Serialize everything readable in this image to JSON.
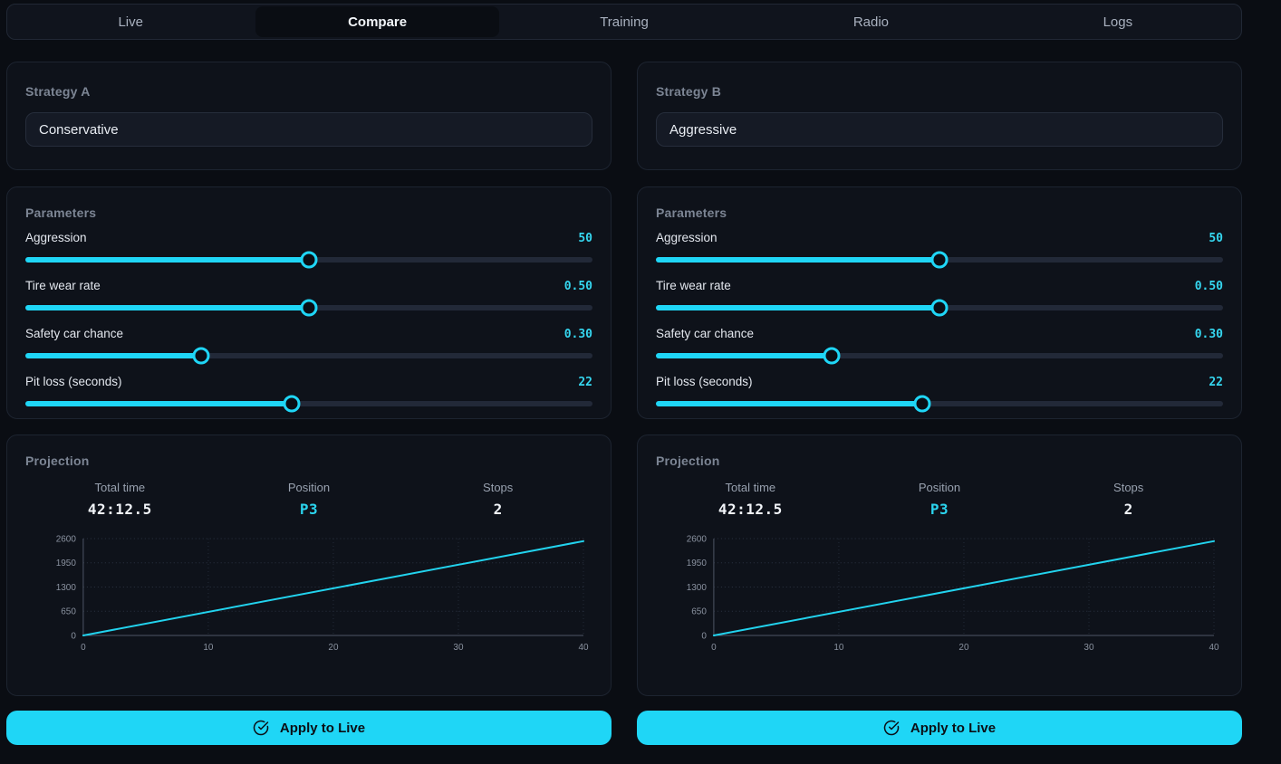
{
  "nav": {
    "tabs": [
      {
        "label": "Live",
        "active": false
      },
      {
        "label": "Compare",
        "active": true
      },
      {
        "label": "Training",
        "active": false
      },
      {
        "label": "Radio",
        "active": false
      },
      {
        "label": "Logs",
        "active": false
      }
    ]
  },
  "colors": {
    "accent": "#1fd6f6",
    "accent_text": "#35d6ef",
    "chart_line": "#22d3ee",
    "card_bg": "#0e121a",
    "page_bg": "#0a0d13"
  },
  "columns": [
    {
      "strategy_title": "Strategy A",
      "strategy_value": "Conservative",
      "parameters_title": "Parameters",
      "parameters": [
        {
          "label": "Aggression",
          "value": "50",
          "percent": 50
        },
        {
          "label": "Tire wear rate",
          "value": "0.50",
          "percent": 50
        },
        {
          "label": "Safety car chance",
          "value": "0.30",
          "percent": 31
        },
        {
          "label": "Pit loss (seconds)",
          "value": "22",
          "percent": 47
        }
      ],
      "projection_title": "Projection",
      "stats": [
        {
          "label": "Total time",
          "value": "42:12.5",
          "accent": false
        },
        {
          "label": "Position",
          "value": "P3",
          "accent": true
        },
        {
          "label": "Stops",
          "value": "2",
          "accent": false
        }
      ],
      "apply_label": "Apply to Live"
    },
    {
      "strategy_title": "Strategy B",
      "strategy_value": "Aggressive",
      "parameters_title": "Parameters",
      "parameters": [
        {
          "label": "Aggression",
          "value": "50",
          "percent": 50
        },
        {
          "label": "Tire wear rate",
          "value": "0.50",
          "percent": 50
        },
        {
          "label": "Safety car chance",
          "value": "0.30",
          "percent": 31
        },
        {
          "label": "Pit loss (seconds)",
          "value": "22",
          "percent": 47
        }
      ],
      "projection_title": "Projection",
      "stats": [
        {
          "label": "Total time",
          "value": "42:12.5",
          "accent": false
        },
        {
          "label": "Position",
          "value": "P3",
          "accent": true
        },
        {
          "label": "Stops",
          "value": "2",
          "accent": false
        }
      ],
      "apply_label": "Apply to Live"
    }
  ],
  "chart_data": [
    {
      "type": "line",
      "title": "Strategy A cumulative race time projection",
      "x": [
        0,
        40
      ],
      "series": [
        {
          "name": "cumulative-time-seconds",
          "values": [
            0,
            2532
          ]
        }
      ],
      "x_ticks": [
        0,
        10,
        20,
        30,
        40
      ],
      "y_ticks": [
        0,
        650,
        1300,
        1950,
        2600
      ],
      "xlim": [
        0,
        40
      ],
      "ylim": [
        0,
        2600
      ],
      "grid": "dotted",
      "legend": "none",
      "line_color": "#22d3ee"
    },
    {
      "type": "line",
      "title": "Strategy B cumulative race time projection",
      "x": [
        0,
        40
      ],
      "series": [
        {
          "name": "cumulative-time-seconds",
          "values": [
            0,
            2532
          ]
        }
      ],
      "x_ticks": [
        0,
        10,
        20,
        30,
        40
      ],
      "y_ticks": [
        0,
        650,
        1300,
        1950,
        2600
      ],
      "xlim": [
        0,
        40
      ],
      "ylim": [
        0,
        2600
      ],
      "grid": "dotted",
      "legend": "none",
      "line_color": "#22d3ee"
    }
  ]
}
